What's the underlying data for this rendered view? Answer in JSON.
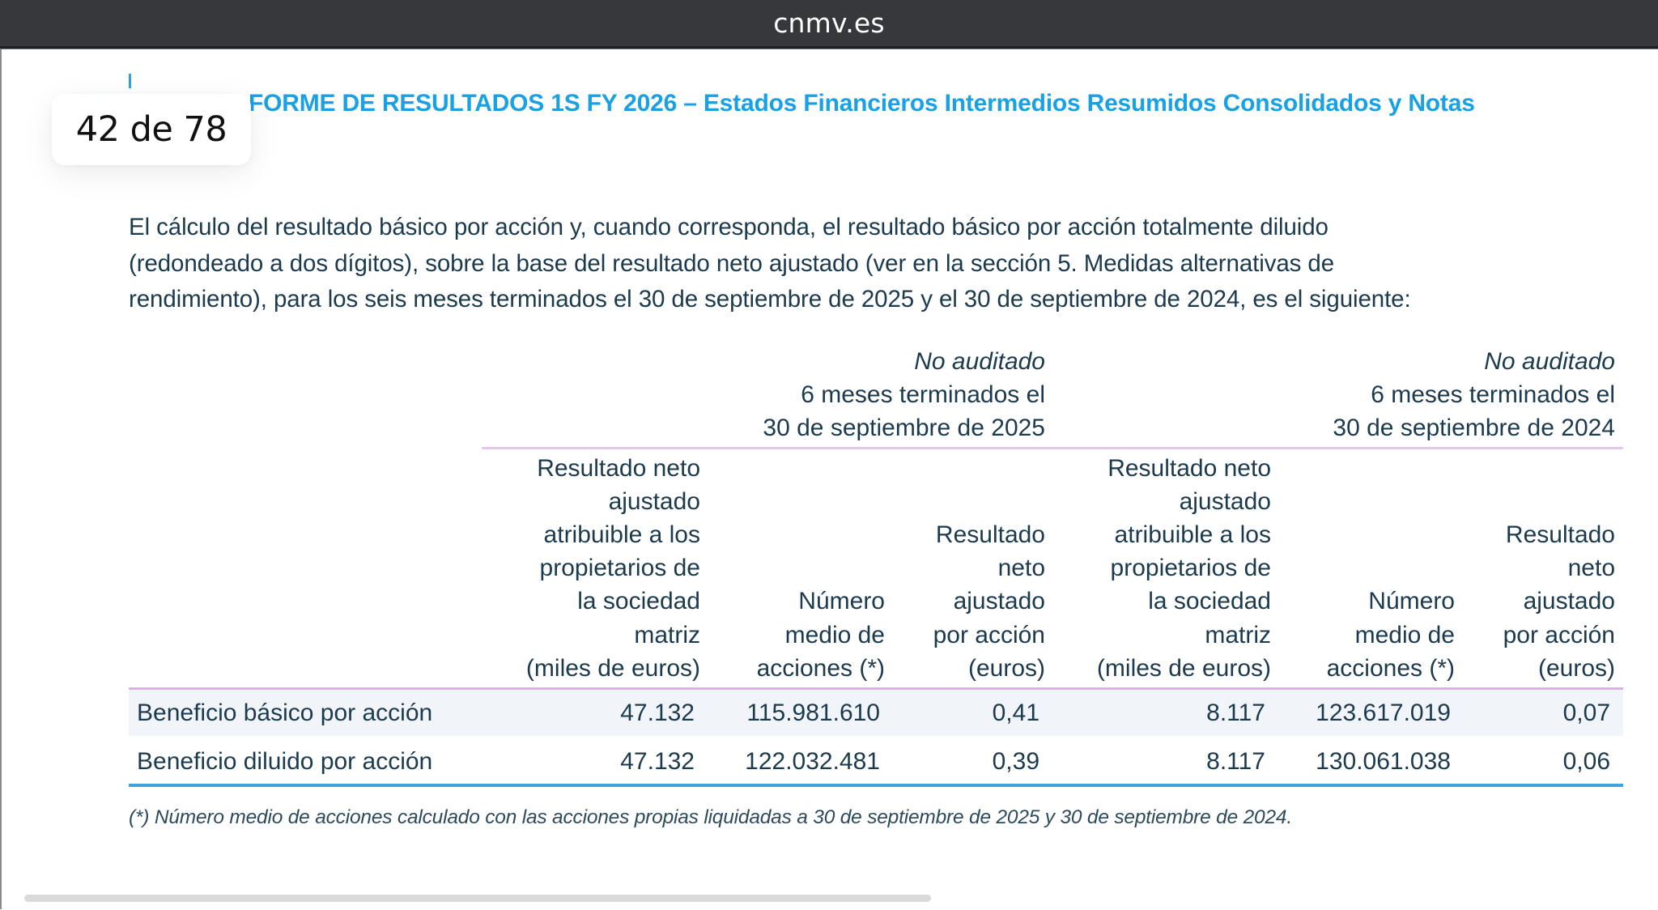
{
  "browser": {
    "domain": "cnmv.es"
  },
  "viewer": {
    "page_indicator": "42 de 78",
    "current_page": 42,
    "total_pages": 78
  },
  "document": {
    "header_title": "INFORME DE RESULTADOS 1S FY 2026 – Estados Financieros Intermedios Resumidos Consolidados y Notas",
    "header_title_visible": "FORME DE RESULTADOS 1S FY 2026 – Estados Financieros Intermedios Resumidos Consolidados y Notas",
    "header_title_faded": "INF",
    "intro_paragraph": "El cálculo del resultado básico por acción y, cuando corresponda, el resultado básico por acción totalmente diluido (redondeado a dos dígitos), sobre la base del resultado neto ajustado (ver en la sección 5. Medidas alternativas de rendimiento), para los seis meses terminados el 30 de septiembre de 2025 y el 30 de septiembre de 2024, es el siguiente:",
    "intro_lines": [
      "El cálculo del resultado básico por acción y, cuando corresponda, el resultado básico por acción totalmente diluido",
      "(redondeado a dos dígitos), sobre la base del resultado neto ajustado (ver en la sección 5. Medidas alternativas de",
      "rendimiento), para los seis meses terminados el 30 de septiembre de 2025 y el 30 de septiembre de 2024, es el siguiente:"
    ],
    "table": {
      "periods": [
        {
          "audit_status": "No auditado",
          "line1": "6 meses terminados el",
          "line2": "30 de septiembre de 2025"
        },
        {
          "audit_status": "No auditado",
          "line1": "6 meses terminados el",
          "line2": "30 de septiembre de 2024"
        }
      ],
      "columns": [
        "Resultado neto\najustado\natribuible a los\npropietarios de\nla sociedad\nmatriz\n(miles de euros)",
        "Número\nmedio de\nacciones (*)",
        "Resultado\nneto\najustado\npor acción\n(euros)",
        "Resultado neto\najustado\natribuible a los\npropietarios de\nla sociedad\nmatriz\n(miles de euros)",
        "Número\nmedio de\nacciones (*)",
        "Resultado\nneto\najustado\npor acción\n(euros)"
      ],
      "rows": [
        {
          "label": "Beneficio básico por acción",
          "values": [
            "47.132",
            "115.981.610",
            "0,41",
            "8.117",
            "123.617.019",
            "0,07"
          ]
        },
        {
          "label": "Beneficio diluido por acción",
          "values": [
            "47.132",
            "122.032.481",
            "0,39",
            "8.117",
            "130.061.038",
            "0,06"
          ]
        }
      ]
    },
    "footnote": "(*) Número medio de acciones calculado con las acciones propias liquidadas a 30 de septiembre de 2025 y 30 de septiembre de 2024."
  },
  "colors": {
    "topbar_bg": "#37383b",
    "title_blue": "#19a1e6",
    "body_text": "#1c3a4d",
    "rule_lilac": "#e4c8ec",
    "rule_blue": "#3ea2dc",
    "row_shade": "#f1f5f9"
  }
}
